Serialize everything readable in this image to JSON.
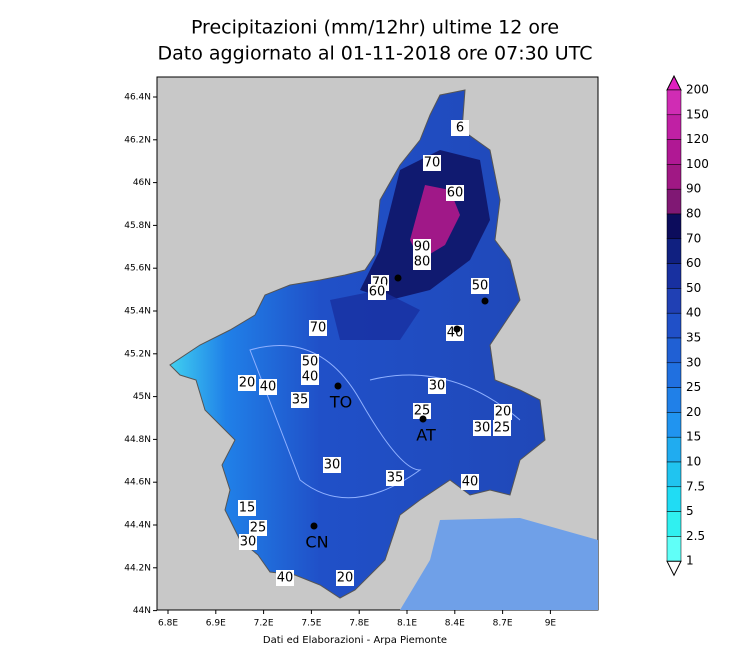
{
  "header": {
    "title": "Precipitazioni (mm/12hr) ultime 12 ore",
    "subtitle": "Dato aggiornato al 01-11-2018 ore 07:30 UTC"
  },
  "lon_ticks": [
    "6.8E",
    "6.9E",
    "7.2E",
    "7.5E",
    "7.8E",
    "8.1E",
    "8.4E",
    "8.7E",
    "9E"
  ],
  "lat_ticks": [
    "46.4N",
    "46.2N",
    "46N",
    "45.8N",
    "45.6N",
    "45.4N",
    "45.2N",
    "45N",
    "44.8N",
    "44.6N",
    "44.4N",
    "44.2N",
    "44N"
  ],
  "colorbar": {
    "labels": [
      200,
      150,
      120,
      100,
      90,
      80,
      70,
      60,
      50,
      40,
      35,
      30,
      25,
      20,
      15,
      10,
      7.5,
      5,
      2.5,
      1
    ],
    "colors": [
      "#e020c0",
      "#d02cb4",
      "#c020a4",
      "#b01894",
      "#a01884",
      "#801874",
      "#0c0c5c",
      "#102080",
      "#1830a0",
      "#2040b4",
      "#2050c8",
      "#2060d4",
      "#2070e0",
      "#2080e8",
      "#2094f0",
      "#20acf0",
      "#20c4f0",
      "#20dcf4",
      "#30f0f0",
      "#60fff8",
      "#ffffff"
    ]
  },
  "contour_labels": [
    "6",
    "70",
    "60",
    "90",
    "80",
    "70",
    "60",
    "50",
    "40",
    "70",
    "50",
    "40",
    "20",
    "40",
    "35",
    "30",
    "25",
    "20",
    "30",
    "25",
    "30",
    "35",
    "40",
    "15",
    "25",
    "30",
    "40",
    "20"
  ],
  "cities": [
    "TO",
    "AT",
    "CN"
  ],
  "footer": "Dati ed Elaborazioni - Arpa Piemonte"
}
